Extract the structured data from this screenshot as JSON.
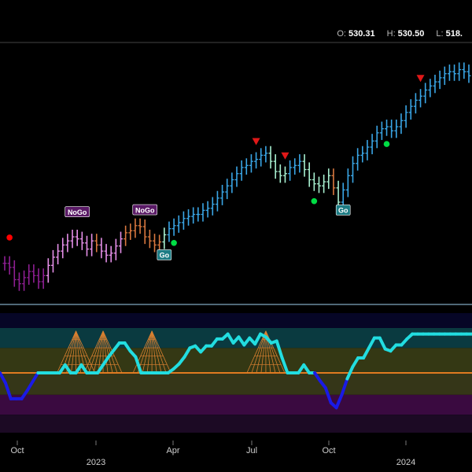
{
  "header": {
    "ohlc": [
      {
        "key": "O:",
        "value": "530.31"
      },
      {
        "key": "H:",
        "value": "530.50"
      },
      {
        "key": "L:",
        "value": "518."
      }
    ]
  },
  "chart_data": [
    {
      "type": "bar",
      "subtype": "ohlc-price-bars",
      "title": "",
      "x_tick_labels": [
        "Oct",
        "2023",
        "Apr",
        "Jul",
        "Oct",
        "2024"
      ],
      "ylim": [
        300,
        550
      ],
      "colors": {
        "nogo_strong": "#8e1f93",
        "nogo": "#e58fe8",
        "nogo_weak": "#d9783f",
        "go_weak": "#a8f0d0",
        "go": "#3aa6e6"
      },
      "series_close": [
        338,
        334,
        322,
        318,
        324,
        330,
        326,
        320,
        326,
        336,
        344,
        350,
        356,
        360,
        364,
        362,
        358,
        352,
        360,
        356,
        350,
        346,
        348,
        355,
        362,
        368,
        370,
        375,
        374,
        364,
        360,
        356,
        359,
        366,
        372,
        375,
        378,
        382,
        384,
        386,
        386,
        390,
        392,
        396,
        402,
        408,
        414,
        420,
        426,
        432,
        434,
        438,
        440,
        444,
        446,
        438,
        428,
        424,
        426,
        432,
        434,
        438,
        430,
        420,
        416,
        414,
        418,
        424,
        412,
        398,
        410,
        424,
        436,
        444,
        446,
        452,
        458,
        466,
        470,
        472,
        468,
        472,
        478,
        486,
        492,
        498,
        502,
        508,
        512,
        516,
        520,
        524,
        526,
        524,
        528,
        526,
        522
      ],
      "bar_states": [
        "NoGo+",
        "NoGo+",
        "NoGo+",
        "NoGo+",
        "NoGo+",
        "NoGo+",
        "NoGo+",
        "NoGo+",
        "NoGo+",
        "NoGo",
        "NoGo",
        "NoGo",
        "NoGo",
        "NoGo",
        "NoGo",
        "NoGo",
        "NoGo",
        "NoGo",
        "NoGo",
        "NoGo-",
        "NoGo",
        "NoGo",
        "NoGo",
        "NoGo",
        "NoGo",
        "NoGo-",
        "NoGo-",
        "NoGo-",
        "NoGo-",
        "NoGo-",
        "NoGo-",
        "NoGo-",
        "NoGo-",
        "Go-",
        "Go",
        "Go",
        "Go",
        "Go",
        "Go",
        "Go",
        "Go",
        "Go",
        "Go",
        "Go",
        "Go",
        "Go",
        "Go",
        "Go",
        "Go",
        "Go",
        "Go",
        "Go",
        "Go",
        "Go",
        "Go",
        "Go-",
        "Go-",
        "Go-",
        "Go-",
        "Go",
        "Go",
        "Go",
        "Go-",
        "Go-",
        "Go-",
        "Go-",
        "Go-",
        "Go-",
        "NoGo-",
        "Go-",
        "Go",
        "Go",
        "Go",
        "Go",
        "Go",
        "Go",
        "Go",
        "Go",
        "Go",
        "Go",
        "Go",
        "Go",
        "Go",
        "Go",
        "Go",
        "Go",
        "Go",
        "Go",
        "Go",
        "Go",
        "Go",
        "Go",
        "Go",
        "Go",
        "Go",
        "Go",
        "Go"
      ],
      "labels": [
        {
          "text": "NoGo",
          "index": 15
        },
        {
          "text": "NoGo",
          "index": 29
        },
        {
          "text": "Go",
          "index": 33
        },
        {
          "text": "Go",
          "index": 70
        }
      ],
      "triangles": [
        52,
        58,
        86
      ],
      "dots": [
        {
          "index": 1,
          "color": "#ff0000"
        },
        {
          "index": 35,
          "color": "#00dd44"
        },
        {
          "index": 64,
          "color": "#00dd44"
        },
        {
          "index": 79,
          "color": "#00dd44"
        }
      ]
    },
    {
      "type": "line",
      "subtype": "go-oscillator",
      "ylim": [
        -6,
        6
      ],
      "zero_line": 0,
      "colors": {
        "above": "#22dde0",
        "below": "#1a1ae6",
        "zero": "#e07a20"
      },
      "bands": [
        {
          "from": 6,
          "to": 4.5,
          "color": "#060626"
        },
        {
          "from": 4.5,
          "to": 2.5,
          "color": "#0a3a40"
        },
        {
          "from": 2.5,
          "to": 0,
          "color": "#343814"
        },
        {
          "from": 0,
          "to": -2.2,
          "color": "#353618"
        },
        {
          "from": -2.2,
          "to": -4.2,
          "color": "#3a0a40"
        },
        {
          "from": -4.2,
          "to": -6,
          "color": "#1c0a24"
        }
      ],
      "values": [
        0,
        -1,
        -2.6,
        -2.6,
        -2.6,
        -1.8,
        -0.9,
        0,
        0,
        0,
        0,
        0,
        0.8,
        0,
        0,
        0.8,
        0,
        0,
        0,
        0.8,
        1.6,
        2.3,
        3.0,
        3.0,
        2.2,
        1.6,
        0,
        0,
        0,
        0,
        0,
        0,
        0.4,
        0.9,
        1.6,
        2.5,
        2.7,
        2.1,
        2.7,
        2.7,
        3.4,
        3.4,
        3.9,
        3.0,
        3.6,
        2.8,
        3.5,
        2.9,
        3.9,
        3.6,
        3.0,
        3.2,
        1.5,
        0,
        0,
        0,
        0.8,
        0,
        0,
        -0.8,
        -1.5,
        -3.0,
        -3.5,
        -2.2,
        -0.6,
        0.6,
        1.5,
        1.5,
        2.5,
        3.5,
        3.5,
        2.4,
        2.2,
        2.8,
        2.8,
        3.4,
        3.9,
        3.9,
        3.9,
        3.9,
        3.9,
        3.9,
        3.9,
        3.9,
        3.9,
        3.9,
        3.9,
        3.9
      ],
      "gofan_indices": [
        14,
        19,
        28,
        49
      ]
    }
  ]
}
